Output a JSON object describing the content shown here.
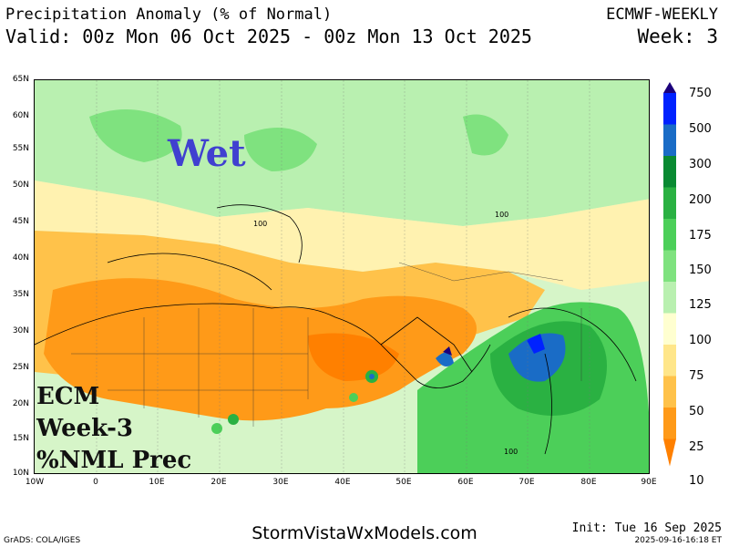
{
  "header": {
    "title": "Precipitation Anomaly (% of Normal)",
    "valid": "Valid: 00z Mon 06 Oct 2025 - 00z Mon 13 Oct 2025",
    "model": "ECMWF-WEEKLY",
    "week": "Week: 3"
  },
  "map": {
    "lat_labels": [
      "65N",
      "60N",
      "55N",
      "50N",
      "45N",
      "40N",
      "35N",
      "30N",
      "25N",
      "20N",
      "15N",
      "10N"
    ],
    "lon_labels": [
      "10W",
      "0",
      "10E",
      "20E",
      "30E",
      "40E",
      "50E",
      "60E",
      "70E",
      "80E",
      "90E"
    ],
    "contour_labels": [
      "100",
      "100",
      "100"
    ]
  },
  "colorbar": {
    "ticks": [
      "750",
      "500",
      "300",
      "200",
      "175",
      "150",
      "125",
      "100",
      "75",
      "50",
      "25",
      "10"
    ],
    "colors": [
      "#1c007c",
      "#0022ff",
      "#1a6cc6",
      "#098a32",
      "#2ab142",
      "#4ccf59",
      "#7fe27f",
      "#b9f0b0",
      "#ffffd0",
      "#ffe68a",
      "#ffc24a",
      "#ff9a18",
      "#ff8000"
    ]
  },
  "overlay": {
    "wet": "Wet",
    "line1": "ECM",
    "line2": "Week-3",
    "line3": "%NML Prec"
  },
  "footer": {
    "site": "StormVistaWxModels.com",
    "grads": "GrADS: COLA/IGES",
    "init": "Init: Tue 16 Sep 2025",
    "stamp": "2025-09-16-16:18 ET"
  }
}
